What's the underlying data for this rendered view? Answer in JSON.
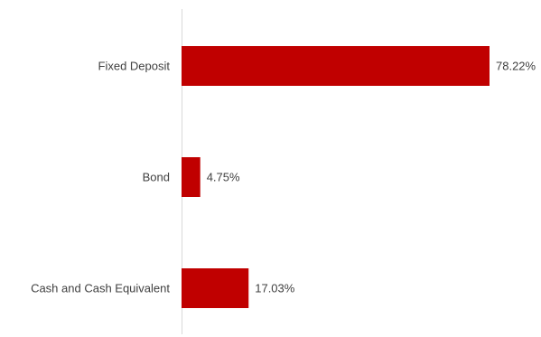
{
  "chart_data": {
    "type": "bar",
    "orientation": "horizontal",
    "categories": [
      "Fixed Deposit",
      "Bond",
      "Cash and Cash Equivalent"
    ],
    "values": [
      78.22,
      4.75,
      17.03
    ],
    "value_labels": [
      "78.22%",
      "4.75%",
      "17.03%"
    ],
    "unit": "%",
    "xlim": [
      0,
      100
    ],
    "grid": false,
    "legend": "none",
    "bar_color": "#C00000",
    "axis_color": "#D9D9D9"
  }
}
